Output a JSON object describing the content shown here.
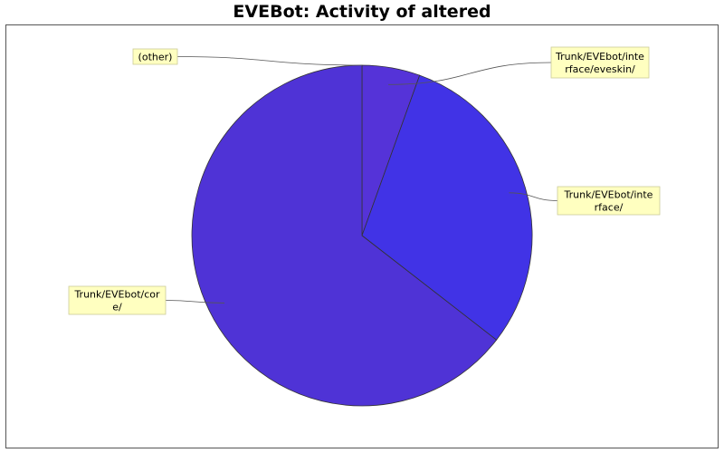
{
  "chart_data": {
    "type": "pie",
    "title": "EVEBot: Activity of altered",
    "start_angle_deg": 90,
    "direction": "clockwise",
    "slices": [
      {
        "label": "Trunk/EVEbot/interface/eveskin/",
        "label_lines": [
          "Trunk/EVEbot/inte",
          "rface/eveskin/"
        ],
        "value": 5.5,
        "color": "#5533D8",
        "label_side": "right"
      },
      {
        "label": "Trunk/EVEbot/interface/",
        "label_lines": [
          "Trunk/EVEbot/inte",
          "rface/"
        ],
        "value": 30.0,
        "color": "#4133E6",
        "label_side": "right"
      },
      {
        "label": "Trunk/EVEbot/core/",
        "label_lines": [
          "Trunk/EVEbot/cor",
          "e/"
        ],
        "value": 64.5,
        "color": "#4F33D6",
        "label_side": "left"
      },
      {
        "label": "(other)",
        "label_lines": [
          "(other)"
        ],
        "value": 0.0,
        "color": "#6A4BD0",
        "label_side": "left"
      }
    ]
  }
}
